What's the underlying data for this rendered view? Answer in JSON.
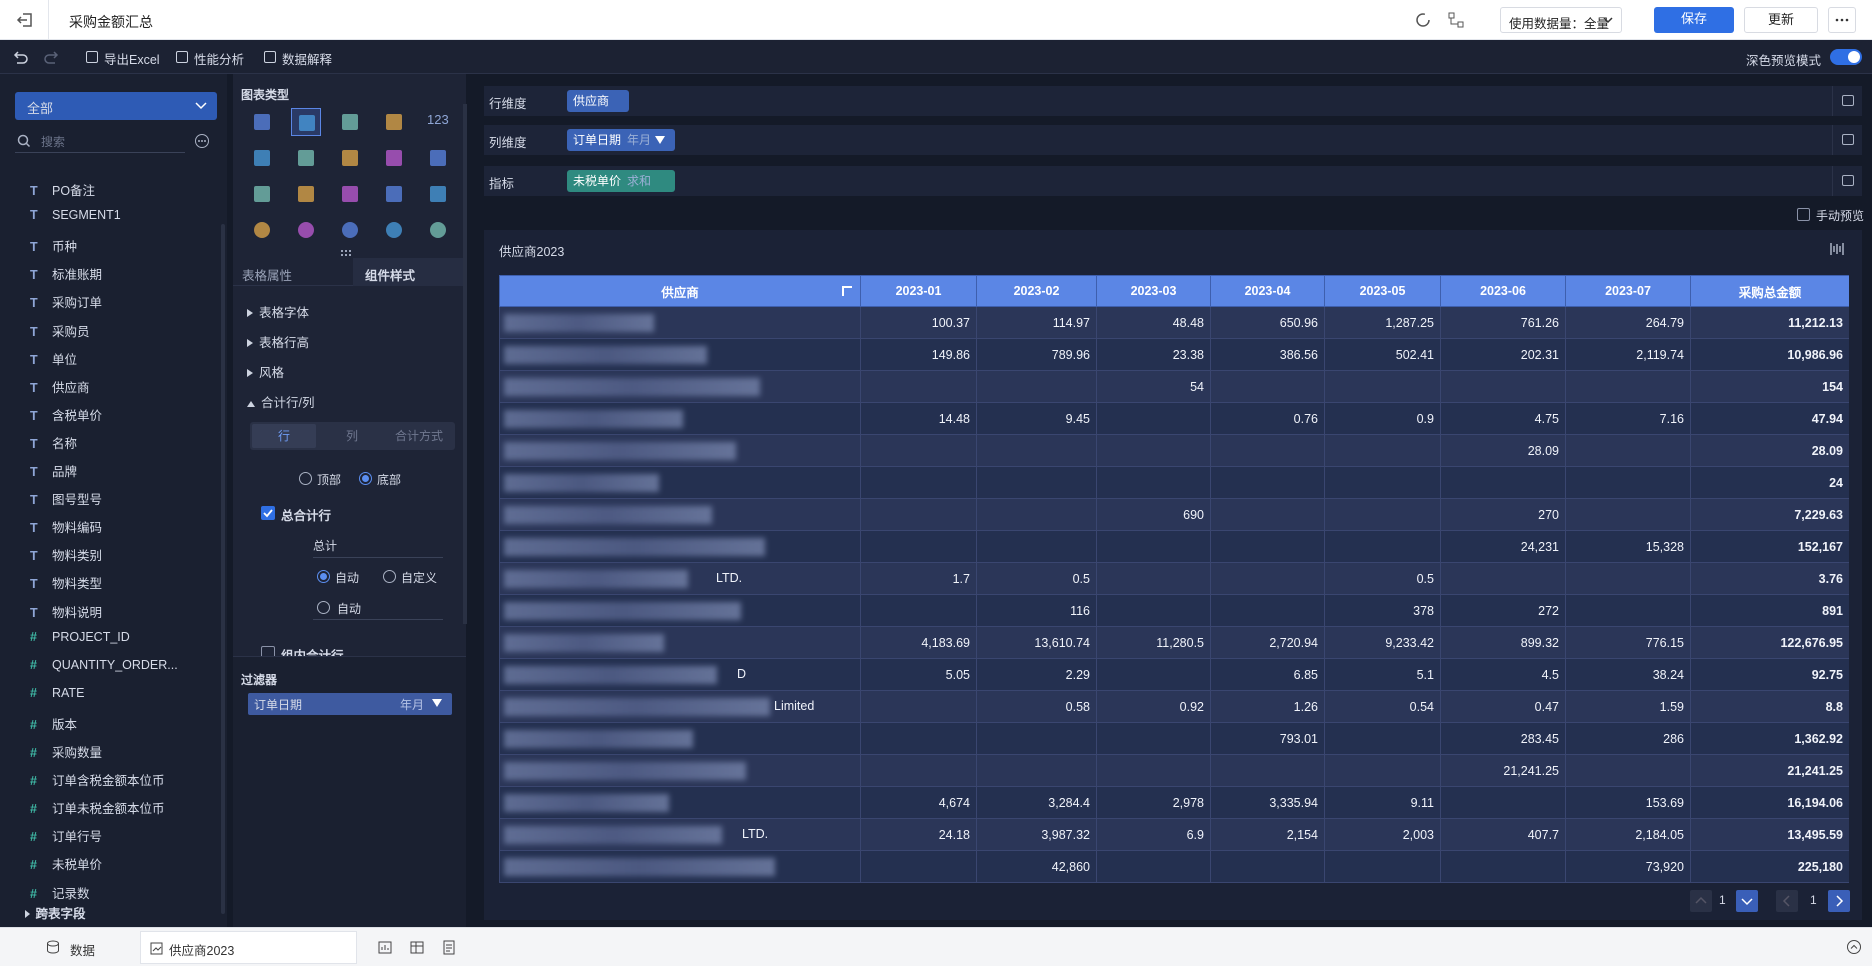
{
  "header": {
    "title": "采购金额汇总",
    "data_amount": "使用数据量：全量",
    "save": "保存",
    "update": "更新"
  },
  "toolbar": {
    "items": [
      "导出Excel",
      "性能分析",
      "数据解释"
    ],
    "dark_mode": "深色预览模式"
  },
  "fields_panel": {
    "scope": "全部",
    "search_placeholder": "搜索",
    "fields": [
      {
        "type": "T",
        "name": "PO备注"
      },
      {
        "type": "T",
        "name": "SEGMENT1"
      },
      {
        "type": "T",
        "name": "币种"
      },
      {
        "type": "T",
        "name": "标准账期"
      },
      {
        "type": "T",
        "name": "采购订单"
      },
      {
        "type": "T",
        "name": "采购员"
      },
      {
        "type": "T",
        "name": "单位"
      },
      {
        "type": "T",
        "name": "供应商"
      },
      {
        "type": "T",
        "name": "含税单价"
      },
      {
        "type": "T",
        "name": "名称"
      },
      {
        "type": "T",
        "name": "品牌"
      },
      {
        "type": "T",
        "name": "图号型号"
      },
      {
        "type": "T",
        "name": "物料编码"
      },
      {
        "type": "T",
        "name": "物料类别"
      },
      {
        "type": "T",
        "name": "物料类型"
      },
      {
        "type": "T",
        "name": "物料说明"
      },
      {
        "type": "#",
        "name": "PROJECT_ID"
      },
      {
        "type": "#",
        "name": "QUANTITY_ORDER..."
      },
      {
        "type": "#",
        "name": "RATE"
      },
      {
        "type": "#",
        "name": "版本"
      },
      {
        "type": "#",
        "name": "采购数量"
      },
      {
        "type": "#",
        "name": "订单含税金额本位币"
      },
      {
        "type": "#",
        "name": "订单未税金额本位币"
      },
      {
        "type": "#",
        "name": "订单行号"
      },
      {
        "type": "#",
        "name": "未税单价"
      },
      {
        "type": "#",
        "name": "记录数"
      }
    ],
    "cross_table": "跨表字段"
  },
  "chart_types": {
    "title": "图表类型",
    "number_icon": "123"
  },
  "style_panel": {
    "tabs": [
      "表格属性",
      "组件样式"
    ],
    "sections": [
      "表格字体",
      "表格行高",
      "风格",
      "合计行/列"
    ],
    "subtabs": [
      "行",
      "列",
      "合计方式"
    ],
    "position_options": [
      "顶部",
      "底部"
    ],
    "grand_total": "总合计行",
    "total_label": "总计",
    "width_options": [
      "自动",
      "自定义"
    ],
    "align": "自动",
    "group_total": "组内合计行"
  },
  "filter": {
    "title": "过滤器",
    "items": [
      {
        "field": "订单日期",
        "granularity": "年月"
      }
    ]
  },
  "dimensions": [
    {
      "label": "行维度",
      "field": "供应商"
    },
    {
      "label": "列维度",
      "field": "订单日期",
      "tag": "年月"
    },
    {
      "label": "指标",
      "field": "未税单价",
      "tag": "求和"
    }
  ],
  "manual_preview": "手动预览",
  "table": {
    "title": "供应商2023",
    "columns": [
      "供应商",
      "2023-01",
      "2023-02",
      "2023-03",
      "2023-04",
      "2023-05",
      "2023-06",
      "2023-07",
      "采购总金额"
    ],
    "rows": [
      [
        null,
        "100.37",
        "114.97",
        "48.48",
        "650.96",
        "1,287.25",
        "761.26",
        "264.79",
        "11,212.13"
      ],
      [
        null,
        "149.86",
        "789.96",
        "23.38",
        "386.56",
        "502.41",
        "202.31",
        "2,119.74",
        "10,986.96"
      ],
      [
        null,
        null,
        null,
        "54",
        null,
        null,
        null,
        null,
        "154"
      ],
      [
        null,
        "14.48",
        "9.45",
        null,
        "0.76",
        "0.9",
        "4.75",
        "7.16",
        "47.94"
      ],
      [
        null,
        null,
        null,
        null,
        null,
        null,
        "28.09",
        null,
        "28.09"
      ],
      [
        null,
        null,
        null,
        null,
        null,
        null,
        null,
        null,
        "24"
      ],
      [
        null,
        null,
        null,
        "690",
        null,
        null,
        "270",
        null,
        "7,229.63"
      ],
      [
        null,
        null,
        null,
        null,
        null,
        null,
        "24,231",
        "15,328",
        "152,167"
      ],
      [
        "LTD.",
        "1.7",
        "0.5",
        null,
        null,
        "0.5",
        null,
        null,
        "3.76"
      ],
      [
        null,
        null,
        "116",
        null,
        null,
        "378",
        "272",
        null,
        "891"
      ],
      [
        null,
        "4,183.69",
        "13,610.74",
        "11,280.5",
        "2,720.94",
        "9,233.42",
        "899.32",
        "776.15",
        "122,676.95"
      ],
      [
        "D",
        "5.05",
        "2.29",
        null,
        "6.85",
        "5.1",
        "4.5",
        "38.24",
        "92.75"
      ],
      [
        "Limited",
        null,
        "0.58",
        "0.92",
        "1.26",
        "0.54",
        "0.47",
        "1.59",
        "8.8"
      ],
      [
        null,
        null,
        null,
        null,
        "793.01",
        null,
        "283.45",
        "286",
        "1,362.92"
      ],
      [
        null,
        null,
        null,
        null,
        null,
        null,
        "21,241.25",
        null,
        "21,241.25"
      ],
      [
        null,
        "4,674",
        "3,284.4",
        "2,978",
        "3,335.94",
        "9.11",
        null,
        "153.69",
        "16,194.06"
      ],
      [
        "LTD.",
        "24.18",
        "3,987.32",
        "6.9",
        "2,154",
        "2,003",
        "407.7",
        "2,184.05",
        "13,495.59"
      ],
      [
        null,
        null,
        "42,860",
        null,
        null,
        null,
        null,
        "73,920",
        "225,180"
      ]
    ]
  },
  "pagination": {
    "row_page": "1",
    "col_page": "1"
  },
  "footer": {
    "data_tab": "数据",
    "sheet_tab": "供应商2023"
  }
}
